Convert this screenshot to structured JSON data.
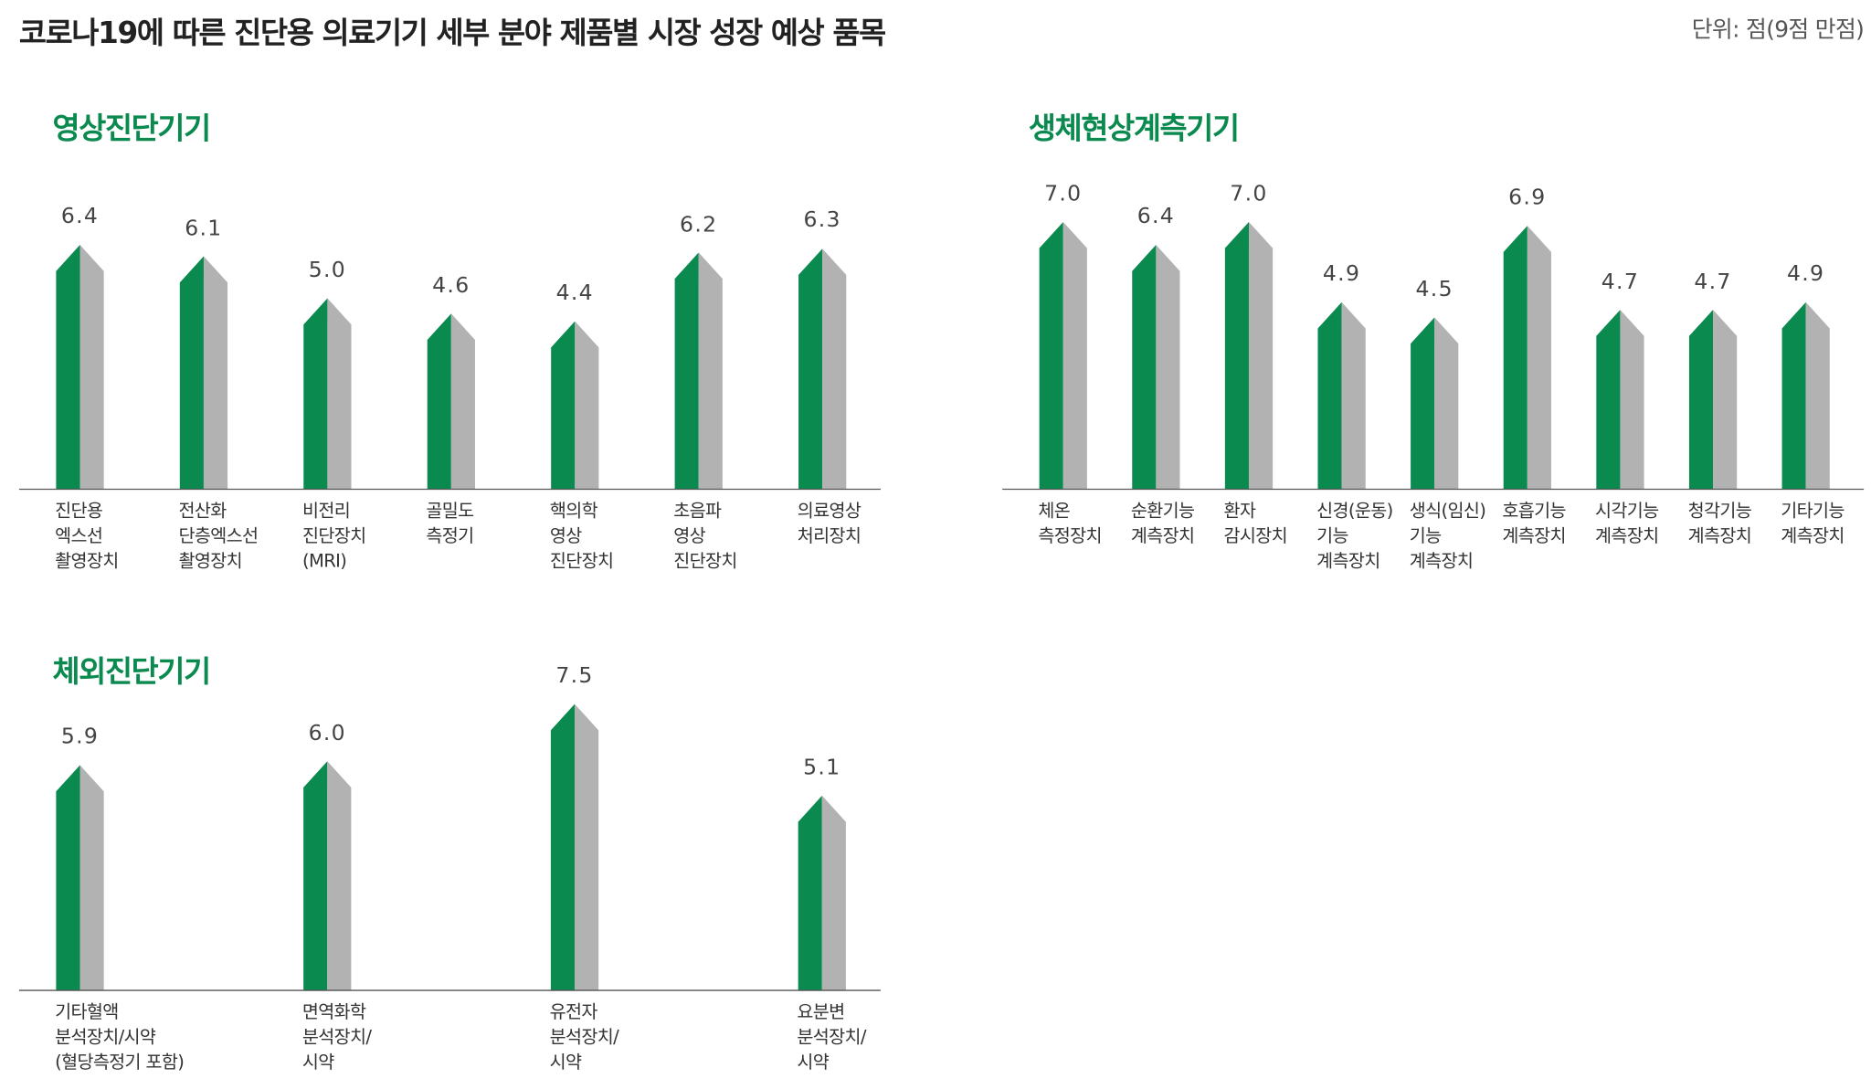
{
  "title": "코로나19에 따른 진단용 의료기기 세부 분야 제품별 시장 성장 예상 품목",
  "unit": "단위: 점(9점 만점)",
  "chart_data": [
    {
      "type": "bar",
      "title": "영상진단기기",
      "color": "#0b8a4f",
      "shade_color": "#b2b2b2",
      "categories": [
        "진단용\n엑스선\n촬영장치",
        "전산화\n단층엑스선\n촬영장치",
        "비전리\n진단장치\n(MRI)",
        "골밀도\n측정기",
        "핵의학\n영상\n진단장치",
        "초음파\n영상\n진단장치",
        "의료영상\n처리장치"
      ],
      "values": [
        6.4,
        6.1,
        5.0,
        4.6,
        4.4,
        6.2,
        6.3
      ],
      "value_labels": [
        "6.4",
        "6.1",
        "5.0",
        "4.6",
        "4.4",
        "6.2",
        "6.3"
      ]
    },
    {
      "type": "bar",
      "title": "생체현상계측기기",
      "color": "#0b8a4f",
      "shade_color": "#b2b2b2",
      "categories": [
        "체온\n측정장치",
        "순환기능\n계측장치",
        "환자\n감시장치",
        "신경(운동)\n기능\n계측장치",
        "생식(임신)\n기능\n계측장치",
        "호흡기능\n계측장치",
        "시각기능\n계측장치",
        "청각기능\n계측장치",
        "기타기능\n계측장치"
      ],
      "values": [
        7.0,
        6.4,
        7.0,
        4.9,
        4.5,
        6.9,
        4.7,
        4.7,
        4.9
      ],
      "value_labels": [
        "7.0",
        "6.4",
        "7.0",
        "4.9",
        "4.5",
        "6.9",
        "4.7",
        "4.7",
        "4.9"
      ]
    },
    {
      "type": "bar",
      "title": "체외진단기기",
      "color": "#0b8a4f",
      "shade_color": "#b2b2b2",
      "categories": [
        "기타혈액\n분석장치/시약\n(혈당측정기 포함)",
        "면역화학\n분석장치/\n시약",
        "유전자\n분석장치/\n시약",
        "요분변\n분석장치/\n시약"
      ],
      "values": [
        5.9,
        6.0,
        7.5,
        5.1
      ],
      "value_labels": [
        "5.9",
        "6.0",
        "7.5",
        "5.1"
      ]
    }
  ]
}
